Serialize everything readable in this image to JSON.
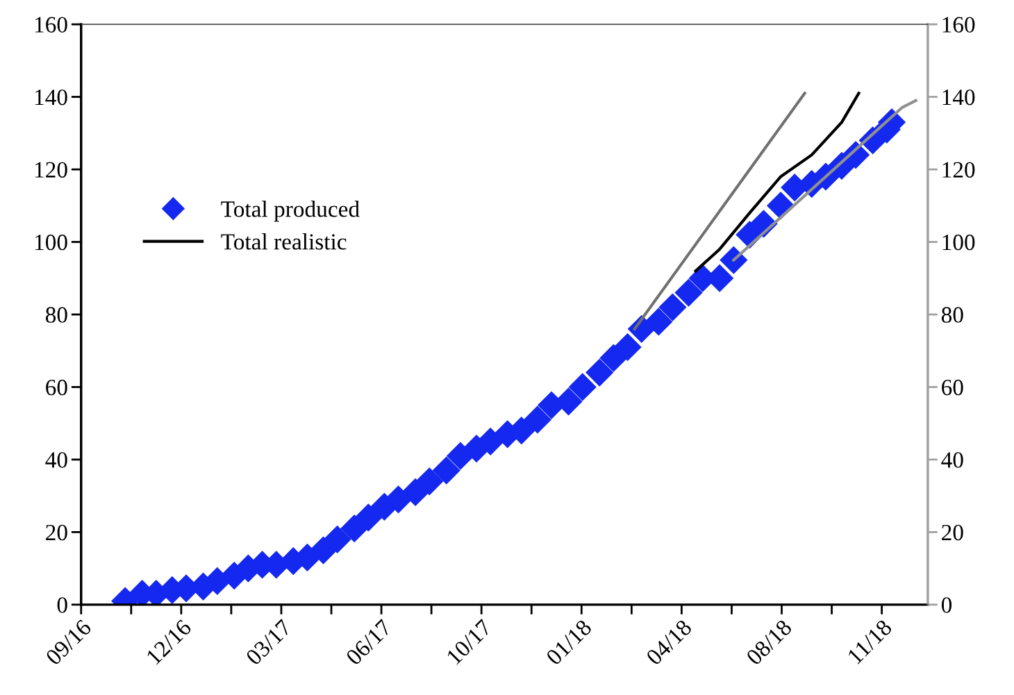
{
  "chart_data": {
    "type": "line",
    "x": [
      "2016-10-15",
      "2016-11-01",
      "2016-11-15",
      "2016-12-01",
      "2016-12-15",
      "2017-01-01",
      "2017-01-15",
      "2017-02-01",
      "2017-02-15",
      "2017-03-01",
      "2017-03-15",
      "2017-04-01",
      "2017-04-15",
      "2017-05-01",
      "2017-05-15",
      "2017-06-01",
      "2017-06-15",
      "2017-07-01",
      "2017-07-15",
      "2017-08-01",
      "2017-08-15",
      "2017-09-01",
      "2017-09-15",
      "2017-10-01",
      "2017-10-15",
      "2017-11-01",
      "2017-11-15",
      "2017-12-01",
      "2017-12-15",
      "2018-01-01",
      "2018-01-15",
      "2018-02-01",
      "2018-02-15",
      "2018-03-01",
      "2018-03-15",
      "2018-04-01",
      "2018-04-15",
      "2018-05-01",
      "2018-05-15",
      "2018-06-01",
      "2018-06-15",
      "2018-07-01",
      "2018-07-15",
      "2018-08-01",
      "2018-08-15",
      "2018-09-01",
      "2018-09-15",
      "2018-10-01",
      "2018-10-15",
      "2018-11-01",
      "2018-11-15",
      "2018-11-20"
    ],
    "series": [
      {
        "color": "#909090",
        "x": [
          "2018-06-15",
          "2018-11-30",
          "2018-12-14"
        ],
        "values": [
          95,
          137,
          139
        ]
      },
      {
        "color": "#707070",
        "x": [
          "2018-03-08",
          "2018-08-25"
        ],
        "values": [
          76,
          141
        ]
      },
      {
        "type": "scatter",
        "name": "Total produced",
        "color": "#1428f0",
        "marker": "diamond",
        "values": [
          1,
          3,
          3,
          4,
          4.5,
          5,
          6.5,
          8,
          10,
          11,
          11,
          12,
          13,
          15,
          18,
          21,
          24,
          27,
          29,
          31,
          34,
          37,
          41,
          43,
          45,
          47,
          48,
          51,
          55,
          56,
          60,
          64,
          68,
          71,
          76,
          78,
          82,
          86,
          90,
          90,
          95,
          102,
          105,
          110,
          115,
          116,
          118,
          121,
          124,
          128,
          131,
          133
        ]
      },
      {
        "name": "Total realistic",
        "color": "#000000",
        "x": [
          "2018-05-08",
          "2018-06-01",
          "2018-07-01",
          "2018-08-01",
          "2018-09-01",
          "2018-10-01",
          "2018-10-18"
        ],
        "values": [
          92,
          98,
          108,
          118,
          124,
          133,
          141
        ]
      }
    ],
    "xlim": [
      "2016-09-01",
      "2018-12-26"
    ],
    "xticks": [
      {
        "value": "2016-09-01",
        "label": "09/16"
      },
      {
        "value": "2016-10-21",
        "label": null
      },
      {
        "value": "2016-12-10",
        "label": "12/16"
      },
      {
        "value": "2017-01-29",
        "label": null
      },
      {
        "value": "2017-03-20",
        "label": "03/17"
      },
      {
        "value": "2017-05-09",
        "label": null
      },
      {
        "value": "2017-06-28",
        "label": "06/17"
      },
      {
        "value": "2017-08-17",
        "label": null
      },
      {
        "value": "2017-10-06",
        "label": "10/17"
      },
      {
        "value": "2017-11-25",
        "label": null
      },
      {
        "value": "2018-01-14",
        "label": "01/18"
      },
      {
        "value": "2018-03-05",
        "label": null
      },
      {
        "value": "2018-04-24",
        "label": "04/18"
      },
      {
        "value": "2018-06-13",
        "label": null
      },
      {
        "value": "2018-08-02",
        "label": "08/18"
      },
      {
        "value": "2018-09-21",
        "label": null
      },
      {
        "value": "2018-11-10",
        "label": "11/18"
      }
    ],
    "ylim": [
      0,
      160
    ],
    "yticks": [
      0,
      20,
      40,
      60,
      80,
      100,
      120,
      140,
      160
    ],
    "y2lim": [
      0,
      160
    ],
    "y2ticks": [
      0,
      20,
      40,
      60,
      80,
      100,
      120,
      140,
      160
    ],
    "grid": false,
    "legend": "left"
  }
}
